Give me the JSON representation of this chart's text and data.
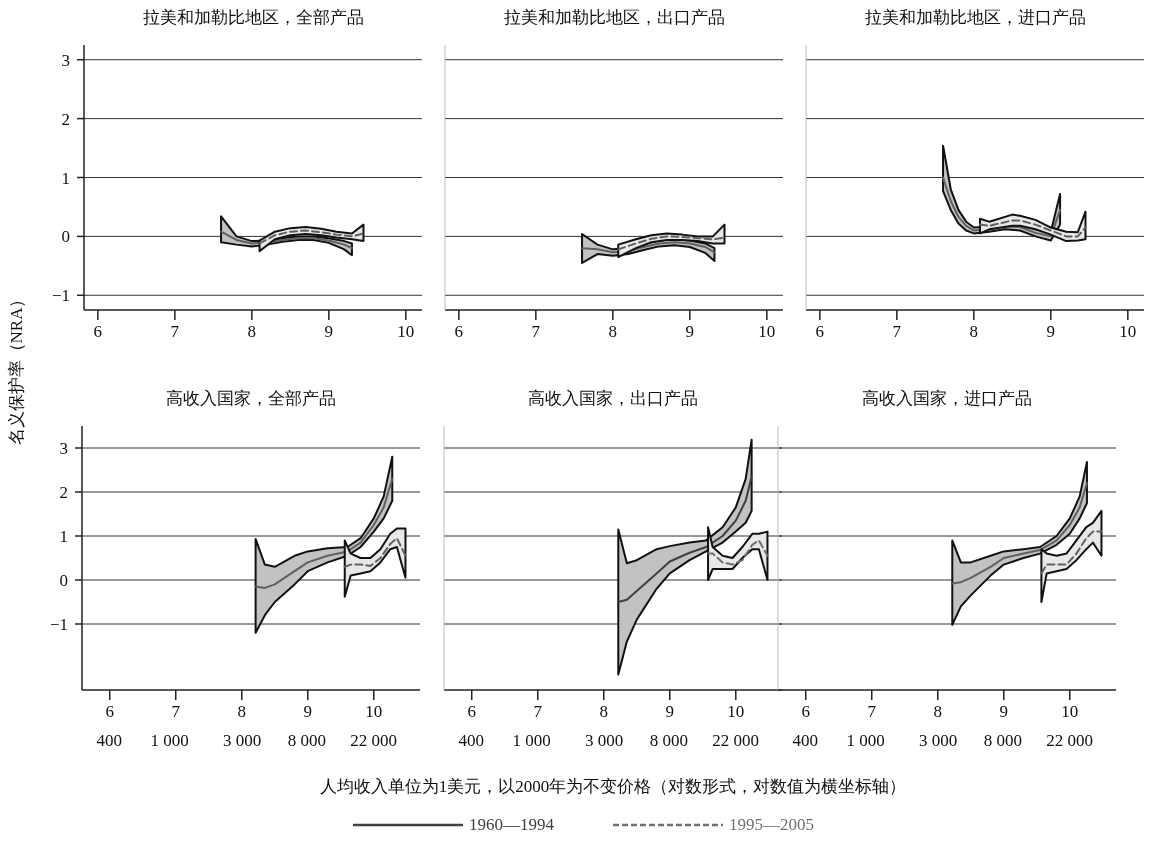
{
  "chart_data": [
    {
      "type": "line",
      "title": "拉美和加勒比地区，全部产品",
      "ylabel": "名义保护率（NRA）",
      "xlim": [
        5.82,
        10.21
      ],
      "xticks": [
        6,
        7,
        8,
        9,
        10
      ],
      "ylim": [
        -1.25,
        3.25
      ],
      "yticks": [
        -1,
        0,
        1,
        2,
        3
      ],
      "grid": "y",
      "series": [
        {
          "color": "#606060",
          "line_style": "solid",
          "x": [
            7.6,
            7.8,
            8.0,
            8.2,
            8.4,
            8.6,
            8.8,
            9.0,
            9.2,
            9.3
          ],
          "values": [
            0.08,
            -0.06,
            -0.12,
            -0.1,
            -0.06,
            -0.03,
            -0.03,
            -0.07,
            -0.14,
            -0.2
          ],
          "upper": [
            0.34,
            0.0,
            -0.08,
            -0.07,
            -0.03,
            0.0,
            0.0,
            -0.03,
            -0.08,
            -0.12
          ],
          "lower": [
            -0.1,
            -0.14,
            -0.17,
            -0.14,
            -0.09,
            -0.06,
            -0.06,
            -0.11,
            -0.22,
            -0.32
          ]
        },
        {
          "color": "#606060",
          "line_style": "dashed",
          "x": [
            8.1,
            8.3,
            8.5,
            8.7,
            8.9,
            9.1,
            9.3,
            9.45
          ],
          "values": [
            -0.12,
            0.02,
            0.08,
            0.1,
            0.07,
            0.03,
            0.0,
            0.05
          ],
          "upper": [
            -0.07,
            0.08,
            0.14,
            0.16,
            0.13,
            0.08,
            0.05,
            0.2
          ],
          "lower": [
            -0.25,
            -0.05,
            0.02,
            0.04,
            0.02,
            -0.02,
            -0.05,
            -0.08
          ]
        }
      ]
    },
    {
      "type": "line",
      "title": "拉美和加勒比地区，出口产品",
      "xlim": [
        5.82,
        10.21
      ],
      "xticks": [
        6,
        7,
        8,
        9,
        10
      ],
      "ylim": [
        -1.25,
        3.25
      ],
      "yticks": [
        -1,
        0,
        1,
        2,
        3
      ],
      "grid": "y",
      "tick_labels": "x",
      "series": [
        {
          "color": "#606060",
          "line_style": "solid",
          "x": [
            7.6,
            7.8,
            8.0,
            8.2,
            8.4,
            8.6,
            8.8,
            9.0,
            9.2,
            9.32
          ],
          "values": [
            -0.2,
            -0.22,
            -0.27,
            -0.25,
            -0.18,
            -0.12,
            -0.1,
            -0.12,
            -0.18,
            -0.27
          ],
          "upper": [
            0.04,
            -0.14,
            -0.22,
            -0.2,
            -0.13,
            -0.07,
            -0.05,
            -0.07,
            -0.12,
            -0.2
          ],
          "lower": [
            -0.45,
            -0.3,
            -0.33,
            -0.3,
            -0.23,
            -0.17,
            -0.15,
            -0.18,
            -0.28,
            -0.42
          ]
        },
        {
          "color": "#606060",
          "line_style": "dashed",
          "x": [
            8.07,
            8.3,
            8.5,
            8.7,
            8.9,
            9.1,
            9.3,
            9.45
          ],
          "values": [
            -0.22,
            -0.12,
            -0.04,
            0.0,
            -0.01,
            -0.03,
            -0.05,
            -0.02
          ],
          "upper": [
            -0.14,
            -0.05,
            0.02,
            0.05,
            0.03,
            0.0,
            0.0,
            0.2
          ],
          "lower": [
            -0.35,
            -0.2,
            -0.1,
            -0.06,
            -0.06,
            -0.08,
            -0.12,
            -0.12
          ]
        }
      ]
    },
    {
      "type": "line",
      "title": "拉美和加勒比地区，进口产品",
      "xlim": [
        5.82,
        10.21
      ],
      "xticks": [
        6,
        7,
        8,
        9,
        10
      ],
      "ylim": [
        -1.25,
        3.25
      ],
      "yticks": [
        -1,
        0,
        1,
        2,
        3
      ],
      "grid": "y",
      "tick_labels": "x",
      "series": [
        {
          "color": "#606060",
          "line_style": "solid",
          "x": [
            7.6,
            7.7,
            7.8,
            7.9,
            8.0,
            8.2,
            8.4,
            8.6,
            8.8,
            9.0,
            9.12
          ],
          "values": [
            1.0,
            0.6,
            0.33,
            0.18,
            0.1,
            0.12,
            0.17,
            0.16,
            0.06,
            0.0,
            0.45
          ],
          "upper": [
            1.54,
            0.8,
            0.45,
            0.25,
            0.15,
            0.17,
            0.23,
            0.22,
            0.12,
            0.08,
            0.72
          ],
          "lower": [
            0.77,
            0.45,
            0.22,
            0.1,
            0.05,
            0.08,
            0.12,
            0.1,
            0.0,
            -0.07,
            0.2
          ]
        },
        {
          "color": "#606060",
          "line_style": "dashed",
          "x": [
            8.08,
            8.2,
            8.5,
            8.6,
            8.8,
            9.0,
            9.2,
            9.35,
            9.45
          ],
          "values": [
            0.2,
            0.18,
            0.27,
            0.27,
            0.2,
            0.1,
            0.0,
            0.0,
            0.15
          ],
          "upper": [
            0.3,
            0.25,
            0.37,
            0.35,
            0.28,
            0.15,
            0.08,
            0.07,
            0.42
          ],
          "lower": [
            0.05,
            0.12,
            0.18,
            0.18,
            0.12,
            0.03,
            -0.08,
            -0.07,
            -0.05
          ]
        }
      ]
    },
    {
      "type": "line",
      "title": "高收入国家，全部产品",
      "xlim": [
        5.58,
        10.7
      ],
      "xticks": [
        6,
        7,
        8,
        9,
        10
      ],
      "x2lim": [
        265,
        44356
      ],
      "x2ticks": [
        {
          "value": 400,
          "label": "400"
        },
        {
          "value": 1000,
          "label": "1 000"
        },
        {
          "value": 3000,
          "label": "3 000"
        },
        {
          "value": 8000,
          "label": "8 000"
        },
        {
          "value": 22000,
          "label": "22 000"
        }
      ],
      "log": "x2",
      "ylim": [
        -2.5,
        3.5
      ],
      "yticks": [
        -1,
        0,
        1,
        2,
        3
      ],
      "grid": "y",
      "series": [
        {
          "color": "#606060",
          "line_style": "solid",
          "x": [
            8.21,
            8.35,
            8.5,
            8.8,
            9.0,
            9.3,
            9.6,
            9.8,
            10.0,
            10.15,
            10.28
          ],
          "values": [
            -0.15,
            -0.18,
            -0.1,
            0.2,
            0.4,
            0.55,
            0.65,
            0.85,
            1.25,
            1.65,
            2.3
          ],
          "upper": [
            0.93,
            0.35,
            0.3,
            0.55,
            0.65,
            0.72,
            0.75,
            0.95,
            1.4,
            1.9,
            2.8
          ],
          "lower": [
            -1.2,
            -0.8,
            -0.5,
            -0.1,
            0.2,
            0.4,
            0.55,
            0.75,
            1.1,
            1.4,
            1.8
          ]
        },
        {
          "color": "#606060",
          "line_style": "dashed",
          "x": [
            9.56,
            9.65,
            9.8,
            9.95,
            10.1,
            10.25,
            10.35,
            10.48
          ],
          "values": [
            0.3,
            0.35,
            0.35,
            0.32,
            0.5,
            0.82,
            0.95,
            0.55
          ],
          "upper": [
            0.9,
            0.6,
            0.5,
            0.5,
            0.7,
            1.05,
            1.17,
            1.17
          ],
          "lower": [
            -0.38,
            0.1,
            0.15,
            0.2,
            0.4,
            0.7,
            0.75,
            0.05
          ]
        }
      ]
    },
    {
      "type": "line",
      "title": "高收入国家，出口产品",
      "xlabel": "人均收入单位为1美元，以2000年为不变价格（对数形式，对数值为横坐标轴）",
      "legend": "bottom",
      "xlim": [
        5.58,
        10.7
      ],
      "xticks": [
        6,
        7,
        8,
        9,
        10
      ],
      "x2lim": [
        265,
        44356
      ],
      "x2ticks": [
        {
          "value": 400,
          "label": "400"
        },
        {
          "value": 1000,
          "label": "1 000"
        },
        {
          "value": 3000,
          "label": "3 000"
        },
        {
          "value": 8000,
          "label": "8 000"
        },
        {
          "value": 22000,
          "label": "22 000"
        }
      ],
      "log": "x2",
      "ylim": [
        -2.5,
        3.5
      ],
      "yticks": [
        -1,
        0,
        1,
        2,
        3
      ],
      "grid": "y",
      "tick_labels": "x",
      "series": [
        {
          "name": "1960—1994",
          "color": "#404040",
          "line_style": "solid",
          "x": [
            8.22,
            8.35,
            8.5,
            8.8,
            9.0,
            9.3,
            9.55,
            9.8,
            10.0,
            10.15,
            10.24
          ],
          "values": [
            -0.5,
            -0.45,
            -0.25,
            0.15,
            0.42,
            0.62,
            0.75,
            1.0,
            1.35,
            1.8,
            2.35
          ],
          "upper": [
            1.15,
            0.38,
            0.45,
            0.7,
            0.77,
            0.85,
            0.9,
            1.2,
            1.65,
            2.3,
            3.19
          ],
          "lower": [
            -2.15,
            -1.4,
            -0.9,
            -0.2,
            0.15,
            0.45,
            0.65,
            0.85,
            1.1,
            1.3,
            1.57
          ]
        },
        {
          "name": "1995—2005",
          "color": "#707070",
          "line_style": "dashed",
          "x": [
            9.58,
            9.65,
            9.8,
            9.95,
            10.1,
            10.25,
            10.35,
            10.48
          ],
          "values": [
            0.6,
            0.6,
            0.4,
            0.35,
            0.45,
            0.8,
            0.9,
            0.55
          ],
          "upper": [
            1.2,
            0.75,
            0.55,
            0.5,
            0.75,
            1.05,
            1.05,
            1.1
          ],
          "lower": [
            0.0,
            0.25,
            0.25,
            0.25,
            0.5,
            0.7,
            0.7,
            0.0
          ]
        }
      ]
    },
    {
      "type": "line",
      "title": "高收入国家，进口产品",
      "xlim": [
        5.58,
        10.7
      ],
      "xticks": [
        6,
        7,
        8,
        9,
        10
      ],
      "x2lim": [
        265,
        44356
      ],
      "x2ticks": [
        {
          "value": 400,
          "label": "400"
        },
        {
          "value": 1000,
          "label": "1 000"
        },
        {
          "value": 3000,
          "label": "3 000"
        },
        {
          "value": 8000,
          "label": "8 000"
        },
        {
          "value": 22000,
          "label": "22 000"
        }
      ],
      "log": "x2",
      "ylim": [
        -2.5,
        3.5
      ],
      "yticks": [
        -1,
        0,
        1,
        2,
        3
      ],
      "grid": "y",
      "tick_labels": "x",
      "series": [
        {
          "color": "#606060",
          "line_style": "solid",
          "x": [
            8.22,
            8.35,
            8.5,
            8.8,
            9.0,
            9.3,
            9.55,
            9.8,
            10.0,
            10.15,
            10.26
          ],
          "values": [
            -0.08,
            -0.05,
            0.05,
            0.3,
            0.5,
            0.6,
            0.68,
            0.9,
            1.25,
            1.65,
            2.2
          ],
          "upper": [
            0.9,
            0.4,
            0.4,
            0.55,
            0.65,
            0.7,
            0.75,
            1.0,
            1.4,
            1.9,
            2.68
          ],
          "lower": [
            -1.02,
            -0.6,
            -0.35,
            0.1,
            0.35,
            0.5,
            0.6,
            0.8,
            1.05,
            1.4,
            1.75
          ]
        },
        {
          "color": "#606060",
          "line_style": "dashed",
          "x": [
            9.57,
            9.65,
            9.8,
            9.95,
            10.1,
            10.25,
            10.35,
            10.48
          ],
          "values": [
            0.15,
            0.35,
            0.35,
            0.35,
            0.6,
            0.95,
            1.1,
            1.1
          ],
          "upper": [
            0.7,
            0.6,
            0.55,
            0.6,
            0.9,
            1.2,
            1.3,
            1.57
          ],
          "lower": [
            -0.5,
            0.15,
            0.2,
            0.25,
            0.45,
            0.7,
            0.85,
            0.55
          ]
        }
      ]
    }
  ]
}
